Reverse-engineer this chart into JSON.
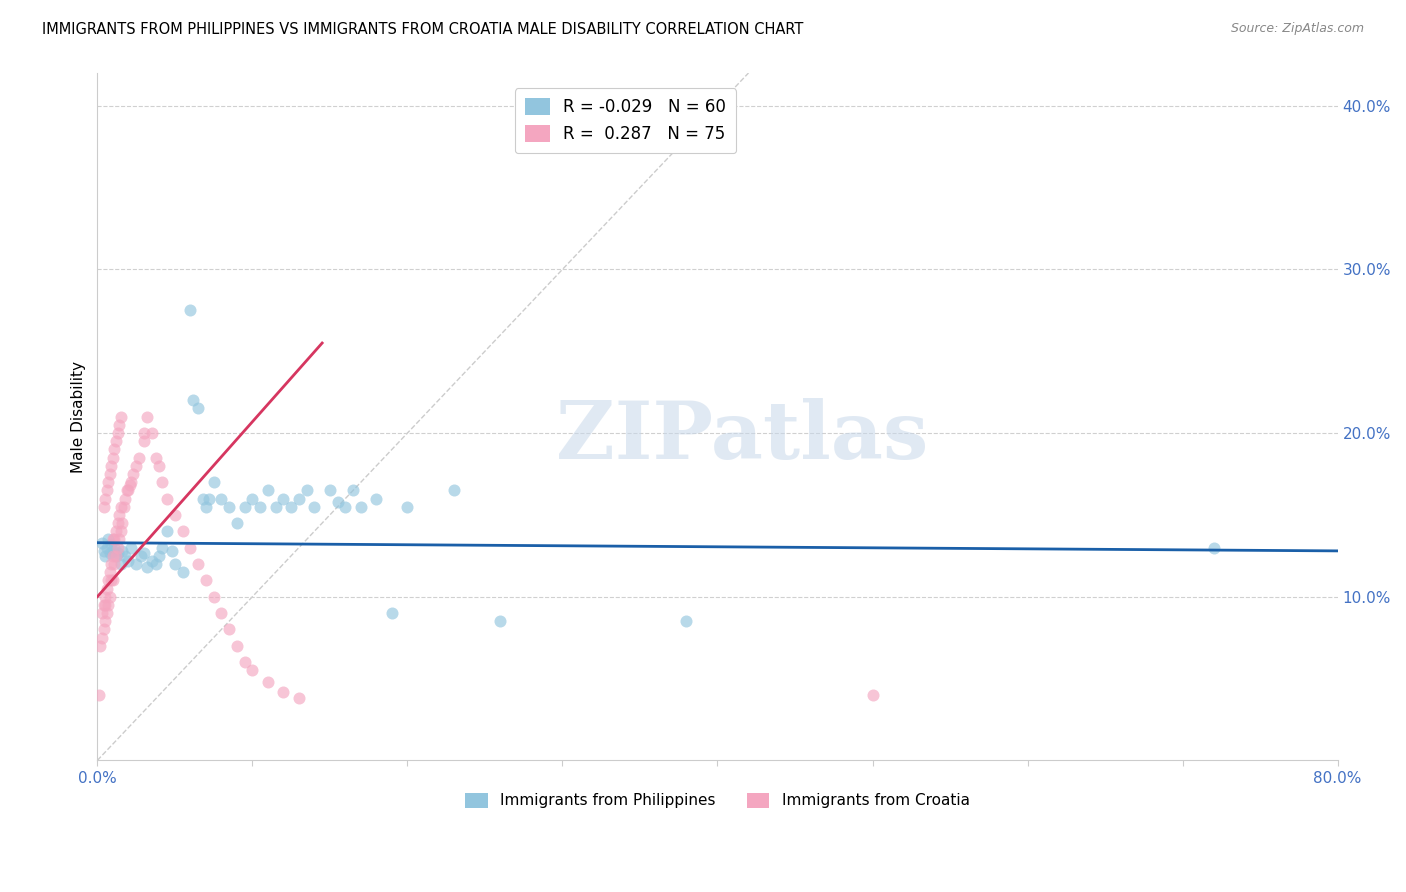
{
  "title": "IMMIGRANTS FROM PHILIPPINES VS IMMIGRANTS FROM CROATIA MALE DISABILITY CORRELATION CHART",
  "source": "Source: ZipAtlas.com",
  "ylabel": "Male Disability",
  "xlim": [
    0.0,
    0.8
  ],
  "ylim": [
    0.0,
    0.42
  ],
  "xticks": [
    0.0,
    0.1,
    0.2,
    0.3,
    0.4,
    0.5,
    0.6,
    0.7,
    0.8
  ],
  "xticklabels": [
    "0.0%",
    "",
    "",
    "",
    "",
    "",
    "",
    "",
    "80.0%"
  ],
  "yticks_right": [
    0.1,
    0.2,
    0.3,
    0.4
  ],
  "ytick_right_labels": [
    "10.0%",
    "20.0%",
    "30.0%",
    "40.0%"
  ],
  "legend_blue_r": "-0.029",
  "legend_blue_n": "60",
  "legend_pink_r": "0.287",
  "legend_pink_n": "75",
  "color_blue": "#92c5de",
  "color_pink": "#f4a6c0",
  "color_line_blue": "#1a5fa8",
  "color_line_pink": "#d63660",
  "watermark": "ZIPatlas",
  "philippines_x": [
    0.003,
    0.004,
    0.005,
    0.006,
    0.007,
    0.008,
    0.009,
    0.01,
    0.011,
    0.012,
    0.013,
    0.015,
    0.016,
    0.018,
    0.02,
    0.022,
    0.025,
    0.028,
    0.03,
    0.032,
    0.035,
    0.038,
    0.04,
    0.042,
    0.045,
    0.048,
    0.05,
    0.055,
    0.06,
    0.062,
    0.065,
    0.068,
    0.07,
    0.072,
    0.075,
    0.08,
    0.085,
    0.09,
    0.095,
    0.1,
    0.105,
    0.11,
    0.115,
    0.12,
    0.125,
    0.13,
    0.135,
    0.14,
    0.15,
    0.155,
    0.16,
    0.165,
    0.17,
    0.18,
    0.19,
    0.2,
    0.23,
    0.26,
    0.38,
    0.72
  ],
  "philippines_y": [
    0.133,
    0.128,
    0.125,
    0.13,
    0.135,
    0.127,
    0.132,
    0.128,
    0.13,
    0.125,
    0.127,
    0.12,
    0.128,
    0.125,
    0.122,
    0.13,
    0.12,
    0.125,
    0.127,
    0.118,
    0.122,
    0.12,
    0.125,
    0.13,
    0.14,
    0.128,
    0.12,
    0.115,
    0.275,
    0.22,
    0.215,
    0.16,
    0.155,
    0.16,
    0.17,
    0.16,
    0.155,
    0.145,
    0.155,
    0.16,
    0.155,
    0.165,
    0.155,
    0.16,
    0.155,
    0.16,
    0.165,
    0.155,
    0.165,
    0.158,
    0.155,
    0.165,
    0.155,
    0.16,
    0.09,
    0.155,
    0.165,
    0.085,
    0.085,
    0.13
  ],
  "croatia_x": [
    0.001,
    0.002,
    0.003,
    0.003,
    0.004,
    0.004,
    0.005,
    0.005,
    0.005,
    0.006,
    0.006,
    0.007,
    0.007,
    0.008,
    0.008,
    0.009,
    0.009,
    0.01,
    0.01,
    0.01,
    0.011,
    0.011,
    0.012,
    0.012,
    0.013,
    0.013,
    0.014,
    0.014,
    0.015,
    0.015,
    0.016,
    0.017,
    0.018,
    0.019,
    0.02,
    0.021,
    0.022,
    0.023,
    0.025,
    0.027,
    0.03,
    0.03,
    0.032,
    0.035,
    0.038,
    0.04,
    0.042,
    0.045,
    0.05,
    0.055,
    0.06,
    0.065,
    0.07,
    0.075,
    0.08,
    0.085,
    0.09,
    0.095,
    0.1,
    0.11,
    0.12,
    0.13,
    0.004,
    0.005,
    0.006,
    0.007,
    0.008,
    0.009,
    0.01,
    0.011,
    0.012,
    0.013,
    0.014,
    0.015,
    0.5
  ],
  "croatia_y": [
    0.04,
    0.07,
    0.075,
    0.09,
    0.08,
    0.095,
    0.085,
    0.095,
    0.1,
    0.09,
    0.105,
    0.095,
    0.11,
    0.1,
    0.115,
    0.11,
    0.12,
    0.11,
    0.125,
    0.135,
    0.12,
    0.135,
    0.125,
    0.14,
    0.13,
    0.145,
    0.135,
    0.15,
    0.14,
    0.155,
    0.145,
    0.155,
    0.16,
    0.165,
    0.165,
    0.168,
    0.17,
    0.175,
    0.18,
    0.185,
    0.195,
    0.2,
    0.21,
    0.2,
    0.185,
    0.18,
    0.17,
    0.16,
    0.15,
    0.14,
    0.13,
    0.12,
    0.11,
    0.1,
    0.09,
    0.08,
    0.07,
    0.06,
    0.055,
    0.048,
    0.042,
    0.038,
    0.155,
    0.16,
    0.165,
    0.17,
    0.175,
    0.18,
    0.185,
    0.19,
    0.195,
    0.2,
    0.205,
    0.21,
    0.04
  ],
  "blue_line_x": [
    0.0,
    0.8
  ],
  "blue_line_y": [
    0.133,
    0.128
  ],
  "pink_line_x": [
    0.0,
    0.145
  ],
  "pink_line_y": [
    0.1,
    0.255
  ],
  "ref_line_x": [
    0.0,
    0.42
  ],
  "ref_line_y": [
    0.0,
    0.42
  ]
}
